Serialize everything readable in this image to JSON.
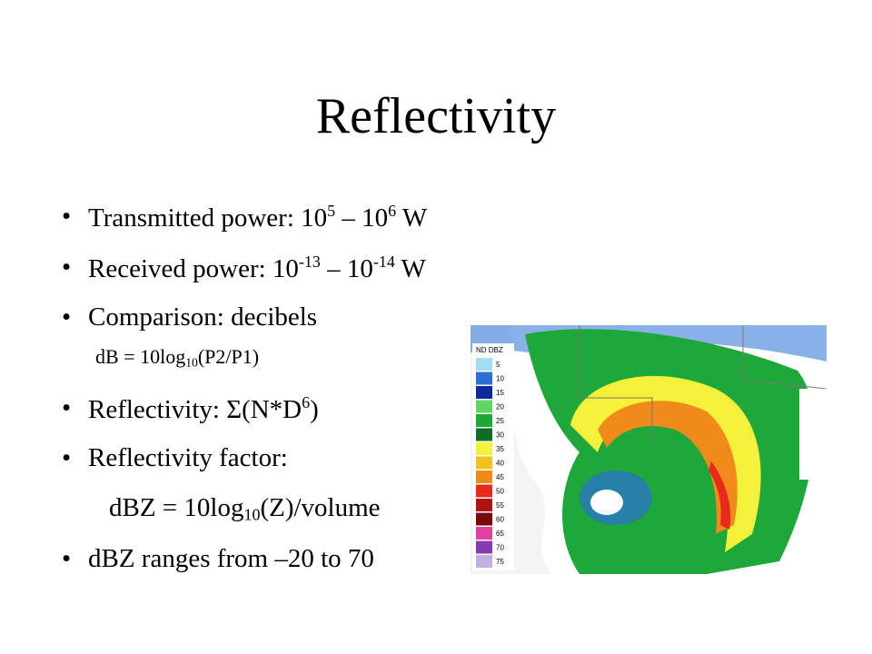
{
  "slide": {
    "title": "Reflectivity",
    "bullets": [
      {
        "level": 1,
        "marker": true,
        "runs": [
          {
            "text": "Transmitted power: 10"
          },
          {
            "text": "5",
            "style": "sup"
          },
          {
            "text": " – 10"
          },
          {
            "text": "6",
            "style": "sup"
          },
          {
            "text": " W"
          }
        ]
      },
      {
        "level": 1,
        "marker": true,
        "runs": [
          {
            "text": "Received power: 10"
          },
          {
            "text": "-13",
            "style": "sup"
          },
          {
            "text": " – 10"
          },
          {
            "text": "-14",
            "style": "sup"
          },
          {
            "text": " W"
          }
        ]
      },
      {
        "level": 1,
        "marker": true,
        "runs": [
          {
            "text": "Comparison: decibels"
          }
        ]
      },
      {
        "level": 2,
        "marker": false,
        "runs": [
          {
            "text": "dB = 10log"
          },
          {
            "text": "10",
            "style": "sub"
          },
          {
            "text": "(P2/P1)"
          }
        ]
      },
      {
        "level": 1,
        "marker": true,
        "runs": [
          {
            "text": "Reflectivity: Σ(N*D"
          },
          {
            "text": "6",
            "style": "sup"
          },
          {
            "text": ")"
          }
        ]
      },
      {
        "level": 1,
        "marker": true,
        "runs": [
          {
            "text": "Reflectivity factor:"
          }
        ]
      },
      {
        "level": 1,
        "marker": false,
        "runs": [
          {
            "text": "dBZ = 10log"
          },
          {
            "text": "10",
            "style": "sub"
          },
          {
            "text": "(Z)/volume"
          }
        ]
      },
      {
        "level": 1,
        "marker": true,
        "runs": [
          {
            "text": "dBZ ranges from –20 to 70"
          }
        ]
      }
    ],
    "radar_legend": {
      "header": "ND DBZ",
      "levels": [
        {
          "value": 5,
          "color": "#9fe0f0"
        },
        {
          "value": 10,
          "color": "#2a6fd6"
        },
        {
          "value": 15,
          "color": "#0a2a9a"
        },
        {
          "value": 20,
          "color": "#5fd65f"
        },
        {
          "value": 25,
          "color": "#1fa83a"
        },
        {
          "value": 30,
          "color": "#0f6e22"
        },
        {
          "value": 35,
          "color": "#f5f03a"
        },
        {
          "value": 40,
          "color": "#f2c21a"
        },
        {
          "value": 45,
          "color": "#f08a1a"
        },
        {
          "value": 50,
          "color": "#e82a1a"
        },
        {
          "value": 55,
          "color": "#b0140f"
        },
        {
          "value": 60,
          "color": "#7a0a0a"
        },
        {
          "value": 65,
          "color": "#e040a0"
        },
        {
          "value": 70,
          "color": "#8a3ab0"
        },
        {
          "value": 75,
          "color": "#c0b0e0"
        }
      ]
    }
  }
}
